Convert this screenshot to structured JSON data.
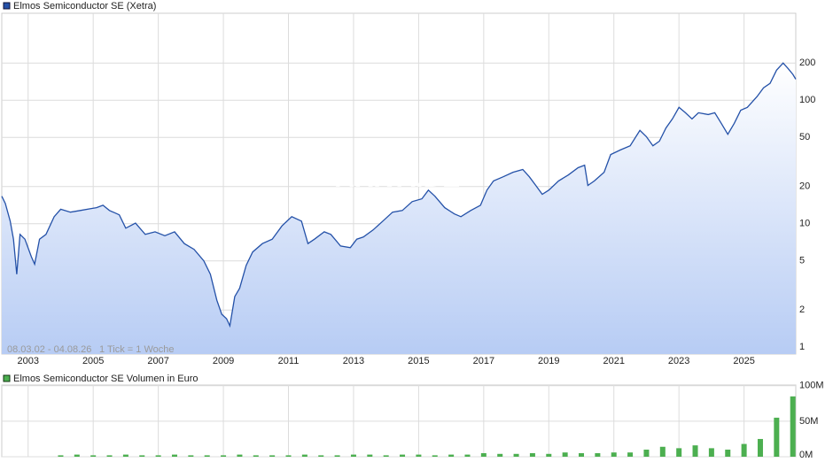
{
  "chart_data": [
    {
      "type": "line",
      "title": "Elmos Semiconductor SE (Xetra)",
      "annotations": [
        "08.03.02 - 04.08.26",
        "1 Tick = 1 Woche"
      ],
      "watermark": "ARIVA.DE",
      "log_scale": true,
      "grid": true,
      "xlim": [
        2002.19,
        2026.59
      ],
      "xticks": [
        2003,
        2005,
        2007,
        2009,
        2011,
        2013,
        2015,
        2017,
        2019,
        2021,
        2023,
        2025
      ],
      "ylim": [
        0.88,
        506
      ],
      "yticks": [
        1,
        2,
        5,
        10,
        20,
        50,
        100,
        200
      ],
      "x": [
        2002.19,
        2002.3,
        2002.45,
        2002.55,
        2002.65,
        2002.75,
        2002.9,
        2003.1,
        2003.2,
        2003.35,
        2003.55,
        2003.8,
        2004.0,
        2004.3,
        2004.6,
        2004.9,
        2005.1,
        2005.3,
        2005.5,
        2005.8,
        2006.0,
        2006.3,
        2006.6,
        2006.9,
        2007.2,
        2007.5,
        2007.8,
        2008.1,
        2008.4,
        2008.6,
        2008.8,
        2008.95,
        2009.1,
        2009.2,
        2009.35,
        2009.5,
        2009.7,
        2009.9,
        2010.2,
        2010.5,
        2010.8,
        2011.1,
        2011.4,
        2011.6,
        2011.8,
        2012.1,
        2012.3,
        2012.6,
        2012.9,
        2013.1,
        2013.3,
        2013.6,
        2013.9,
        2014.2,
        2014.5,
        2014.8,
        2015.1,
        2015.3,
        2015.5,
        2015.8,
        2016.1,
        2016.3,
        2016.6,
        2016.9,
        2017.1,
        2017.3,
        2017.6,
        2017.9,
        2018.2,
        2018.4,
        2018.6,
        2018.8,
        2019.0,
        2019.3,
        2019.6,
        2019.9,
        2020.1,
        2020.2,
        2020.4,
        2020.7,
        2020.9,
        2021.2,
        2021.5,
        2021.8,
        2022.0,
        2022.2,
        2022.4,
        2022.6,
        2022.8,
        2023.0,
        2023.2,
        2023.4,
        2023.6,
        2023.9,
        2024.1,
        2024.3,
        2024.5,
        2024.7,
        2024.9,
        2025.1,
        2025.4,
        2025.6,
        2025.8,
        2026.0,
        2026.2,
        2026.35,
        2026.5,
        2026.59
      ],
      "series": [
        {
          "name": "Elmos Semiconductor SE (Xetra)",
          "color": "#2451a8",
          "values": [
            16.7,
            14.6,
            10.5,
            7.5,
            3.9,
            8.2,
            7.5,
            5.4,
            4.7,
            7.5,
            8.2,
            11.4,
            13.1,
            12.4,
            12.8,
            13.2,
            13.5,
            14.1,
            12.8,
            11.8,
            9.2,
            10.1,
            8.2,
            8.6,
            8.0,
            8.6,
            6.9,
            6.2,
            5.0,
            3.9,
            2.4,
            1.85,
            1.7,
            1.49,
            2.57,
            3.0,
            4.6,
            5.9,
            6.9,
            7.5,
            9.6,
            11.4,
            10.5,
            6.9,
            7.5,
            8.6,
            8.2,
            6.6,
            6.4,
            7.5,
            7.8,
            8.9,
            10.5,
            12.4,
            12.8,
            15.1,
            15.9,
            18.7,
            16.7,
            13.5,
            12.0,
            11.4,
            12.8,
            14.1,
            18.7,
            22.2,
            24.0,
            26.1,
            27.5,
            24.0,
            20.4,
            17.3,
            18.7,
            22.2,
            24.8,
            28.4,
            29.8,
            20.4,
            22.2,
            26.1,
            36.3,
            39.6,
            42.8,
            57,
            50.7,
            42.8,
            46.6,
            59.6,
            70.6,
            87.6,
            79.2,
            70.6,
            79.2,
            76.6,
            79.2,
            65,
            53,
            65,
            83,
            87.6,
            107,
            126,
            137,
            175,
            200,
            181,
            162,
            148
          ]
        }
      ]
    },
    {
      "type": "bar",
      "xlim": [
        2002.19,
        2026.59
      ],
      "xticks": [
        2003,
        2005,
        2007,
        2009,
        2011,
        2013,
        2015,
        2017,
        2019,
        2021,
        2023,
        2025
      ],
      "ylim": [
        0,
        106000000
      ],
      "yticks": [
        {
          "value": 0,
          "label": "0M"
        },
        {
          "value": 50000000,
          "label": "50M"
        },
        {
          "value": 100000000,
          "label": "100M"
        }
      ],
      "grid": true,
      "x": [
        2004.0,
        2004.5,
        2005.0,
        2005.5,
        2006.0,
        2006.5,
        2007.0,
        2007.5,
        2008.0,
        2008.5,
        2009.0,
        2009.5,
        2010.0,
        2010.5,
        2011.0,
        2011.5,
        2012.0,
        2012.5,
        2013.0,
        2013.5,
        2014.0,
        2014.5,
        2015.0,
        2015.5,
        2016.0,
        2016.5,
        2017.0,
        2017.5,
        2018.0,
        2018.5,
        2019.0,
        2019.5,
        2020.0,
        2020.5,
        2021.0,
        2021.5,
        2022.0,
        2022.5,
        2023.0,
        2023.5,
        2024.0,
        2024.5,
        2025.0,
        2025.5,
        2026.0,
        2026.5
      ],
      "series": [
        {
          "name": "Elmos Semiconductor SE Volumen in Euro",
          "color": "#4caf50",
          "values": [
            2000000,
            3000000,
            2000000,
            2000000,
            3000000,
            2000000,
            2000000,
            3000000,
            2000000,
            2000000,
            2000000,
            3000000,
            2000000,
            2000000,
            2000000,
            3000000,
            2000000,
            2000000,
            3000000,
            3000000,
            2000000,
            3000000,
            3000000,
            2000000,
            3000000,
            3000000,
            5000000,
            4000000,
            4000000,
            5000000,
            4000000,
            6000000,
            5000000,
            5000000,
            6000000,
            6000000,
            10000000,
            14000000,
            12000000,
            16000000,
            12000000,
            10000000,
            18000000,
            25000000,
            55000000,
            85000000
          ]
        }
      ]
    }
  ]
}
